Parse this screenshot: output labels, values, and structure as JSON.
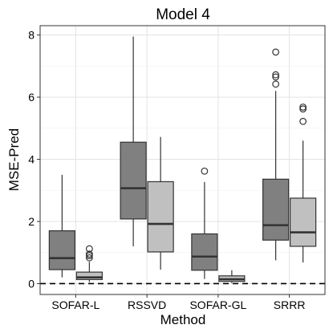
{
  "chart_data": {
    "type": "box",
    "title": "Model 4",
    "xlabel": "Method",
    "ylabel": "MSE-Pred",
    "ylim": [
      -0.35,
      8.3
    ],
    "yticks": [
      0,
      2,
      4,
      6,
      8
    ],
    "grid": true,
    "legend": "none",
    "reference_line": {
      "y": 0,
      "style": "dashed"
    },
    "categories": [
      "SOFAR-L",
      "RSSVD",
      "SOFAR-GL",
      "SRRR"
    ],
    "series": [
      {
        "color": "#808080",
        "boxes": [
          {
            "whisker_low": 0.2,
            "q1": 0.45,
            "median": 0.82,
            "q3": 1.7,
            "whisker_high": 3.5,
            "outliers": []
          },
          {
            "whisker_low": 1.2,
            "q1": 2.08,
            "median": 3.07,
            "q3": 4.55,
            "whisker_high": 7.95,
            "outliers": []
          },
          {
            "whisker_low": 0.15,
            "q1": 0.43,
            "median": 0.87,
            "q3": 1.6,
            "whisker_high": 3.27,
            "outliers": [
              3.62
            ]
          },
          {
            "whisker_low": 0.75,
            "q1": 1.4,
            "median": 1.88,
            "q3": 3.36,
            "whisker_high": 6.2,
            "outliers": [
              6.42,
              6.65,
              6.72,
              7.45
            ]
          }
        ]
      },
      {
        "color": "#c0c0c0",
        "boxes": [
          {
            "whisker_low": 0.05,
            "q1": 0.13,
            "median": 0.2,
            "q3": 0.37,
            "whisker_high": 0.7,
            "outliers": [
              0.83,
              0.9,
              0.95,
              1.12
            ]
          },
          {
            "whisker_low": 0.45,
            "q1": 1.02,
            "median": 1.92,
            "q3": 3.28,
            "whisker_high": 4.72,
            "outliers": []
          },
          {
            "whisker_low": 0.02,
            "q1": 0.07,
            "median": 0.14,
            "q3": 0.25,
            "whisker_high": 0.43,
            "outliers": []
          },
          {
            "whisker_low": 0.68,
            "q1": 1.2,
            "median": 1.65,
            "q3": 2.75,
            "whisker_high": 4.6,
            "outliers": [
              5.22,
              5.62,
              5.68
            ]
          }
        ]
      }
    ]
  }
}
